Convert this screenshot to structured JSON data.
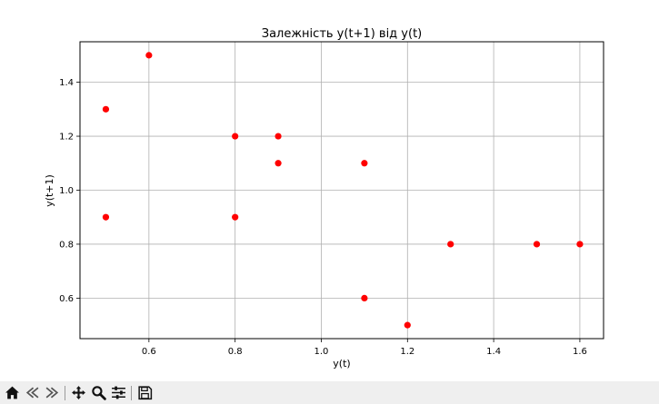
{
  "chart_data": {
    "type": "scatter",
    "title": "Залежність y(t+1) від y(t)",
    "xlabel": "y(t)",
    "ylabel": "y(t+1)",
    "xlim": [
      0.44,
      1.655
    ],
    "ylim": [
      0.45,
      1.55
    ],
    "xticks": [
      0.6,
      0.8,
      1.0,
      1.2,
      1.4,
      1.6
    ],
    "yticks": [
      0.6,
      0.8,
      1.0,
      1.2,
      1.4
    ],
    "grid": true,
    "marker_color": "#ff0000",
    "points": [
      {
        "x": 0.5,
        "y": 1.3
      },
      {
        "x": 0.6,
        "y": 1.5
      },
      {
        "x": 0.5,
        "y": 0.9
      },
      {
        "x": 0.8,
        "y": 1.2
      },
      {
        "x": 0.9,
        "y": 1.2
      },
      {
        "x": 0.9,
        "y": 1.1
      },
      {
        "x": 0.8,
        "y": 0.9
      },
      {
        "x": 1.1,
        "y": 1.1
      },
      {
        "x": 1.1,
        "y": 0.6
      },
      {
        "x": 1.2,
        "y": 0.5
      },
      {
        "x": 1.3,
        "y": 0.8
      },
      {
        "x": 1.5,
        "y": 0.8
      },
      {
        "x": 1.6,
        "y": 0.8
      }
    ]
  },
  "toolbar": {
    "buttons": [
      "home-icon",
      "back-icon",
      "forward-icon",
      "pan-icon",
      "zoom-icon",
      "configure-icon",
      "save-icon"
    ]
  }
}
